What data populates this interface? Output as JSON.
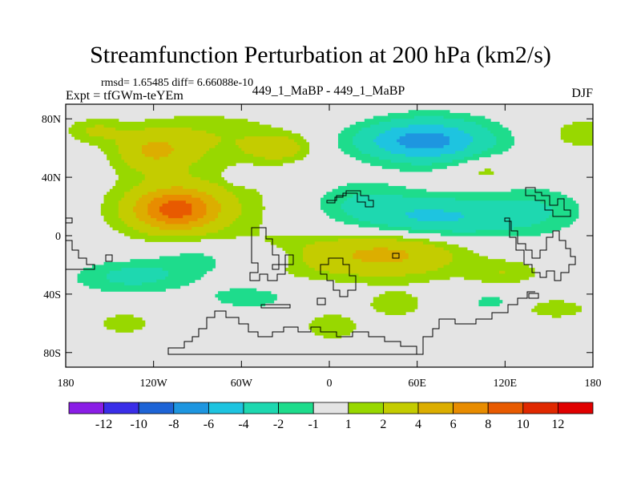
{
  "chart_data": {
    "type": "heatmap",
    "title": "Streamfunction Perturbation at 200 hPa (km2/s)",
    "stats_line": "rmsd= 1.65485  diff= 6.66088e-10",
    "experiment_line": "Expt = tfGWm-teYEm",
    "case_label": "449_1_MaBP - 449_1_MaBP",
    "season": "DJF",
    "x_ticks": [
      {
        "value": -180,
        "label": "180"
      },
      {
        "value": -120,
        "label": "120W"
      },
      {
        "value": -60,
        "label": "60W"
      },
      {
        "value": 0,
        "label": "0"
      },
      {
        "value": 60,
        "label": "60E"
      },
      {
        "value": 120,
        "label": "120E"
      },
      {
        "value": 180,
        "label": "180"
      }
    ],
    "y_ticks": [
      {
        "value": 80,
        "label": "80N"
      },
      {
        "value": 40,
        "label": "40N"
      },
      {
        "value": 0,
        "label": "0"
      },
      {
        "value": -40,
        "label": "40S"
      },
      {
        "value": -80,
        "label": "80S"
      }
    ],
    "xlim": [
      -180,
      180
    ],
    "ylim": [
      -90,
      90
    ],
    "colorbar": {
      "levels": [
        -12,
        -10,
        -8,
        -6,
        -4,
        -2,
        -1,
        1,
        2,
        4,
        6,
        8,
        10,
        12
      ],
      "labels": [
        "-12",
        "-10",
        "-8",
        "-6",
        "-4",
        "-2",
        "-1",
        "1",
        "2",
        "4",
        "6",
        "8",
        "10",
        "12"
      ],
      "colors": [
        "#8a1ee6",
        "#3a2ee8",
        "#1e64d6",
        "#1e96e0",
        "#1ec4e0",
        "#1ed8b0",
        "#1edc8c",
        "#e4e4e4",
        "#98d800",
        "#c4cc00",
        "#dcae00",
        "#e88c00",
        "#e85a00",
        "#e02800",
        "#e00000"
      ]
    },
    "fields": [
      {
        "lon": -105,
        "lat": 18,
        "value": 7.2,
        "sx": 20,
        "sy": 10
      },
      {
        "lon": -95,
        "lat": 20,
        "value": 2.0,
        "sx": 42,
        "sy": 20
      },
      {
        "lon": -120,
        "lat": 58,
        "value": 3.5,
        "sx": 18,
        "sy": 10
      },
      {
        "lon": -160,
        "lat": 72,
        "value": 2.0,
        "sx": 14,
        "sy": 6
      },
      {
        "lon": -35,
        "lat": 60,
        "value": 3.0,
        "sx": 14,
        "sy": 6
      },
      {
        "lon": -80,
        "lat": 68,
        "value": 1.8,
        "sx": 38,
        "sy": 12
      },
      {
        "lon": 70,
        "lat": 65,
        "value": -5.5,
        "sx": 30,
        "sy": 11
      },
      {
        "lon": 48,
        "lat": 65,
        "value": -2.0,
        "sx": 28,
        "sy": 8
      },
      {
        "lon": 70,
        "lat": 12,
        "value": -4.6,
        "sx": 38,
        "sy": 10
      },
      {
        "lon": 20,
        "lat": 25,
        "value": -1.6,
        "sx": 24,
        "sy": 10
      },
      {
        "lon": 140,
        "lat": 18,
        "value": -1.8,
        "sx": 26,
        "sy": 12
      },
      {
        "lon": 175,
        "lat": 70,
        "value": 2.0,
        "sx": 16,
        "sy": 7
      },
      {
        "lon": 45,
        "lat": -12,
        "value": 4.0,
        "sx": 34,
        "sy": 12
      },
      {
        "lon": -20,
        "lat": -15,
        "value": 2.0,
        "sx": 40,
        "sy": 10
      },
      {
        "lon": -85,
        "lat": -15,
        "value": -2.0,
        "sx": 26,
        "sy": 9
      },
      {
        "lon": -135,
        "lat": -28,
        "value": -2.5,
        "sx": 28,
        "sy": 8
      },
      {
        "lon": -55,
        "lat": -42,
        "value": -1.6,
        "sx": 22,
        "sy": 6
      },
      {
        "lon": -35,
        "lat": -15,
        "value": -1.5,
        "sx": 14,
        "sy": 6
      },
      {
        "lon": -60,
        "lat": 40,
        "value": -1.4,
        "sx": 8,
        "sy": 4
      },
      {
        "lon": 45,
        "lat": -47,
        "value": 1.8,
        "sx": 14,
        "sy": 6
      },
      {
        "lon": 2,
        "lat": -62,
        "value": 1.8,
        "sx": 14,
        "sy": 7
      },
      {
        "lon": -140,
        "lat": -60,
        "value": 1.8,
        "sx": 14,
        "sy": 5
      },
      {
        "lon": 155,
        "lat": -50,
        "value": 1.7,
        "sx": 16,
        "sy": 5
      },
      {
        "lon": 120,
        "lat": -25,
        "value": 1.8,
        "sx": 18,
        "sy": 6
      },
      {
        "lon": 110,
        "lat": -45,
        "value": -1.5,
        "sx": 10,
        "sy": 4
      },
      {
        "lon": 105,
        "lat": 45,
        "value": 1.6,
        "sx": 16,
        "sy": 7
      }
    ]
  }
}
